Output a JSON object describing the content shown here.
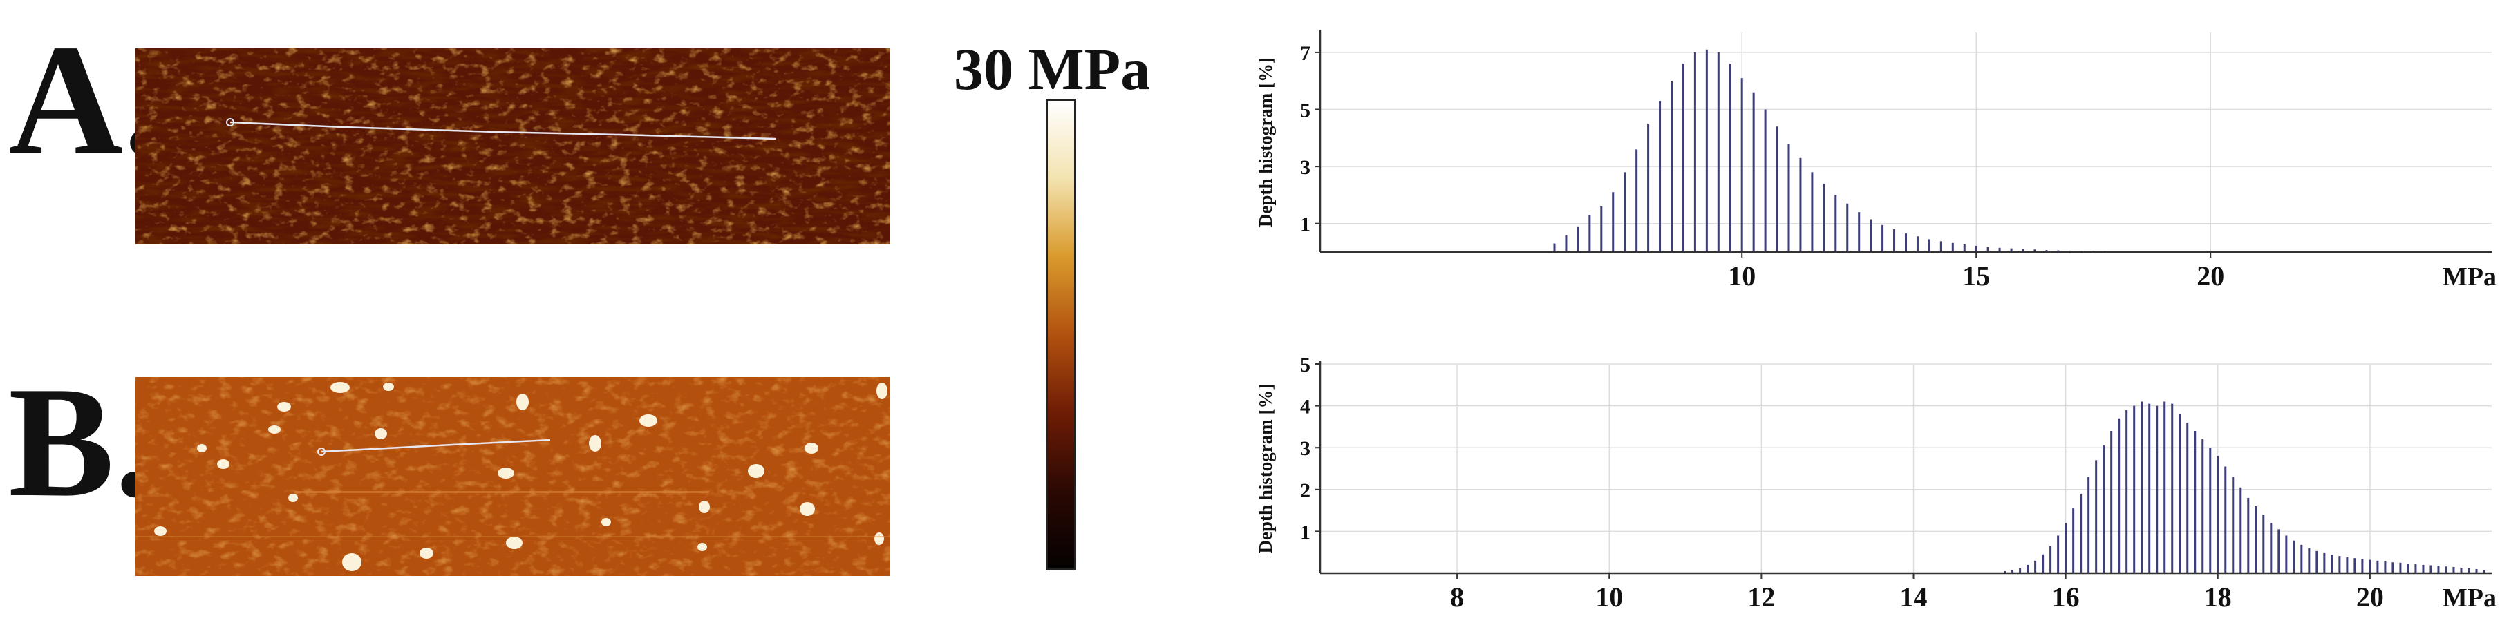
{
  "panels": [
    {
      "letter": "A."
    },
    {
      "letter": "B."
    }
  ],
  "colorbar": {
    "label": "30 MPa",
    "gradient": [
      "#ffffff",
      "#f3e3b0",
      "#d99a2c",
      "#b2520f",
      "#6f1c05",
      "#2b0903",
      "#050101"
    ]
  },
  "colors": {
    "afm_a_base": "#5a1604",
    "afm_b_base": "#b4500e",
    "profile_line": "#e8e8f4",
    "histogram_bar": "#3d3d78"
  },
  "chart_data": [
    {
      "type": "bar",
      "panel": "A",
      "ylabel": "Depth histogram [%]",
      "unit_label": "MPa",
      "xlim": [
        1,
        26
      ],
      "ylim": [
        0,
        7.7
      ],
      "x_ticks": [
        10,
        15,
        20
      ],
      "y_ticks": [
        1,
        3,
        5,
        7
      ],
      "grid": true,
      "x": [
        6.0,
        6.25,
        6.5,
        6.75,
        7.0,
        7.25,
        7.5,
        7.75,
        8.0,
        8.25,
        8.5,
        8.75,
        9.0,
        9.25,
        9.5,
        9.75,
        10.0,
        10.25,
        10.5,
        10.75,
        11.0,
        11.25,
        11.5,
        11.75,
        12.0,
        12.25,
        12.5,
        12.75,
        13.0,
        13.25,
        13.5,
        13.75,
        14.0,
        14.25,
        14.5,
        14.75,
        15.0,
        15.25,
        15.5,
        15.75,
        16.0,
        16.25,
        16.5,
        16.75,
        17.0,
        17.25,
        17.5,
        17.75,
        18.0,
        18.25,
        18.5,
        18.75
      ],
      "values": [
        0.3,
        0.6,
        0.9,
        1.3,
        1.6,
        2.1,
        2.8,
        3.6,
        4.5,
        5.3,
        6.0,
        6.6,
        7.0,
        7.1,
        7.0,
        6.6,
        6.1,
        5.6,
        5.0,
        4.4,
        3.8,
        3.3,
        2.8,
        2.4,
        2.0,
        1.7,
        1.4,
        1.15,
        0.95,
        0.8,
        0.65,
        0.55,
        0.45,
        0.38,
        0.32,
        0.27,
        0.22,
        0.18,
        0.15,
        0.13,
        0.11,
        0.09,
        0.07,
        0.06,
        0.05,
        0.04,
        0.035,
        0.03,
        0.02,
        0.015,
        0.01,
        0.008
      ]
    },
    {
      "type": "bar",
      "panel": "B",
      "ylabel": "Depth histogram [%]",
      "unit_label": "MPa",
      "xlim": [
        6.2,
        21.6
      ],
      "ylim": [
        0,
        5
      ],
      "x_ticks": [
        8,
        10,
        12,
        14,
        16,
        18,
        20
      ],
      "y_ticks": [
        1,
        2,
        3,
        4,
        5
      ],
      "grid": true,
      "x": [
        15.2,
        15.3,
        15.4,
        15.5,
        15.6,
        15.7,
        15.8,
        15.9,
        16.0,
        16.1,
        16.2,
        16.3,
        16.4,
        16.5,
        16.6,
        16.7,
        16.8,
        16.9,
        17.0,
        17.1,
        17.2,
        17.3,
        17.4,
        17.5,
        17.6,
        17.7,
        17.8,
        17.9,
        18.0,
        18.1,
        18.2,
        18.3,
        18.4,
        18.5,
        18.6,
        18.7,
        18.8,
        18.9,
        19.0,
        19.1,
        19.2,
        19.3,
        19.4,
        19.5,
        19.6,
        19.7,
        19.8,
        19.9,
        20.0,
        20.1,
        20.2,
        20.3,
        20.4,
        20.5,
        20.6,
        20.7,
        20.8,
        20.9,
        21.0,
        21.1,
        21.2,
        21.3,
        21.4,
        21.5
      ],
      "values": [
        0.05,
        0.08,
        0.12,
        0.2,
        0.3,
        0.45,
        0.65,
        0.9,
        1.2,
        1.55,
        1.9,
        2.3,
        2.7,
        3.05,
        3.4,
        3.7,
        3.9,
        4.0,
        4.1,
        4.05,
        4.0,
        4.1,
        4.05,
        3.8,
        3.6,
        3.4,
        3.2,
        3.0,
        2.8,
        2.55,
        2.3,
        2.05,
        1.8,
        1.6,
        1.4,
        1.2,
        1.05,
        0.9,
        0.78,
        0.68,
        0.6,
        0.53,
        0.48,
        0.44,
        0.41,
        0.38,
        0.36,
        0.34,
        0.32,
        0.3,
        0.28,
        0.26,
        0.25,
        0.23,
        0.22,
        0.2,
        0.19,
        0.18,
        0.16,
        0.15,
        0.13,
        0.12,
        0.1,
        0.08
      ]
    }
  ]
}
